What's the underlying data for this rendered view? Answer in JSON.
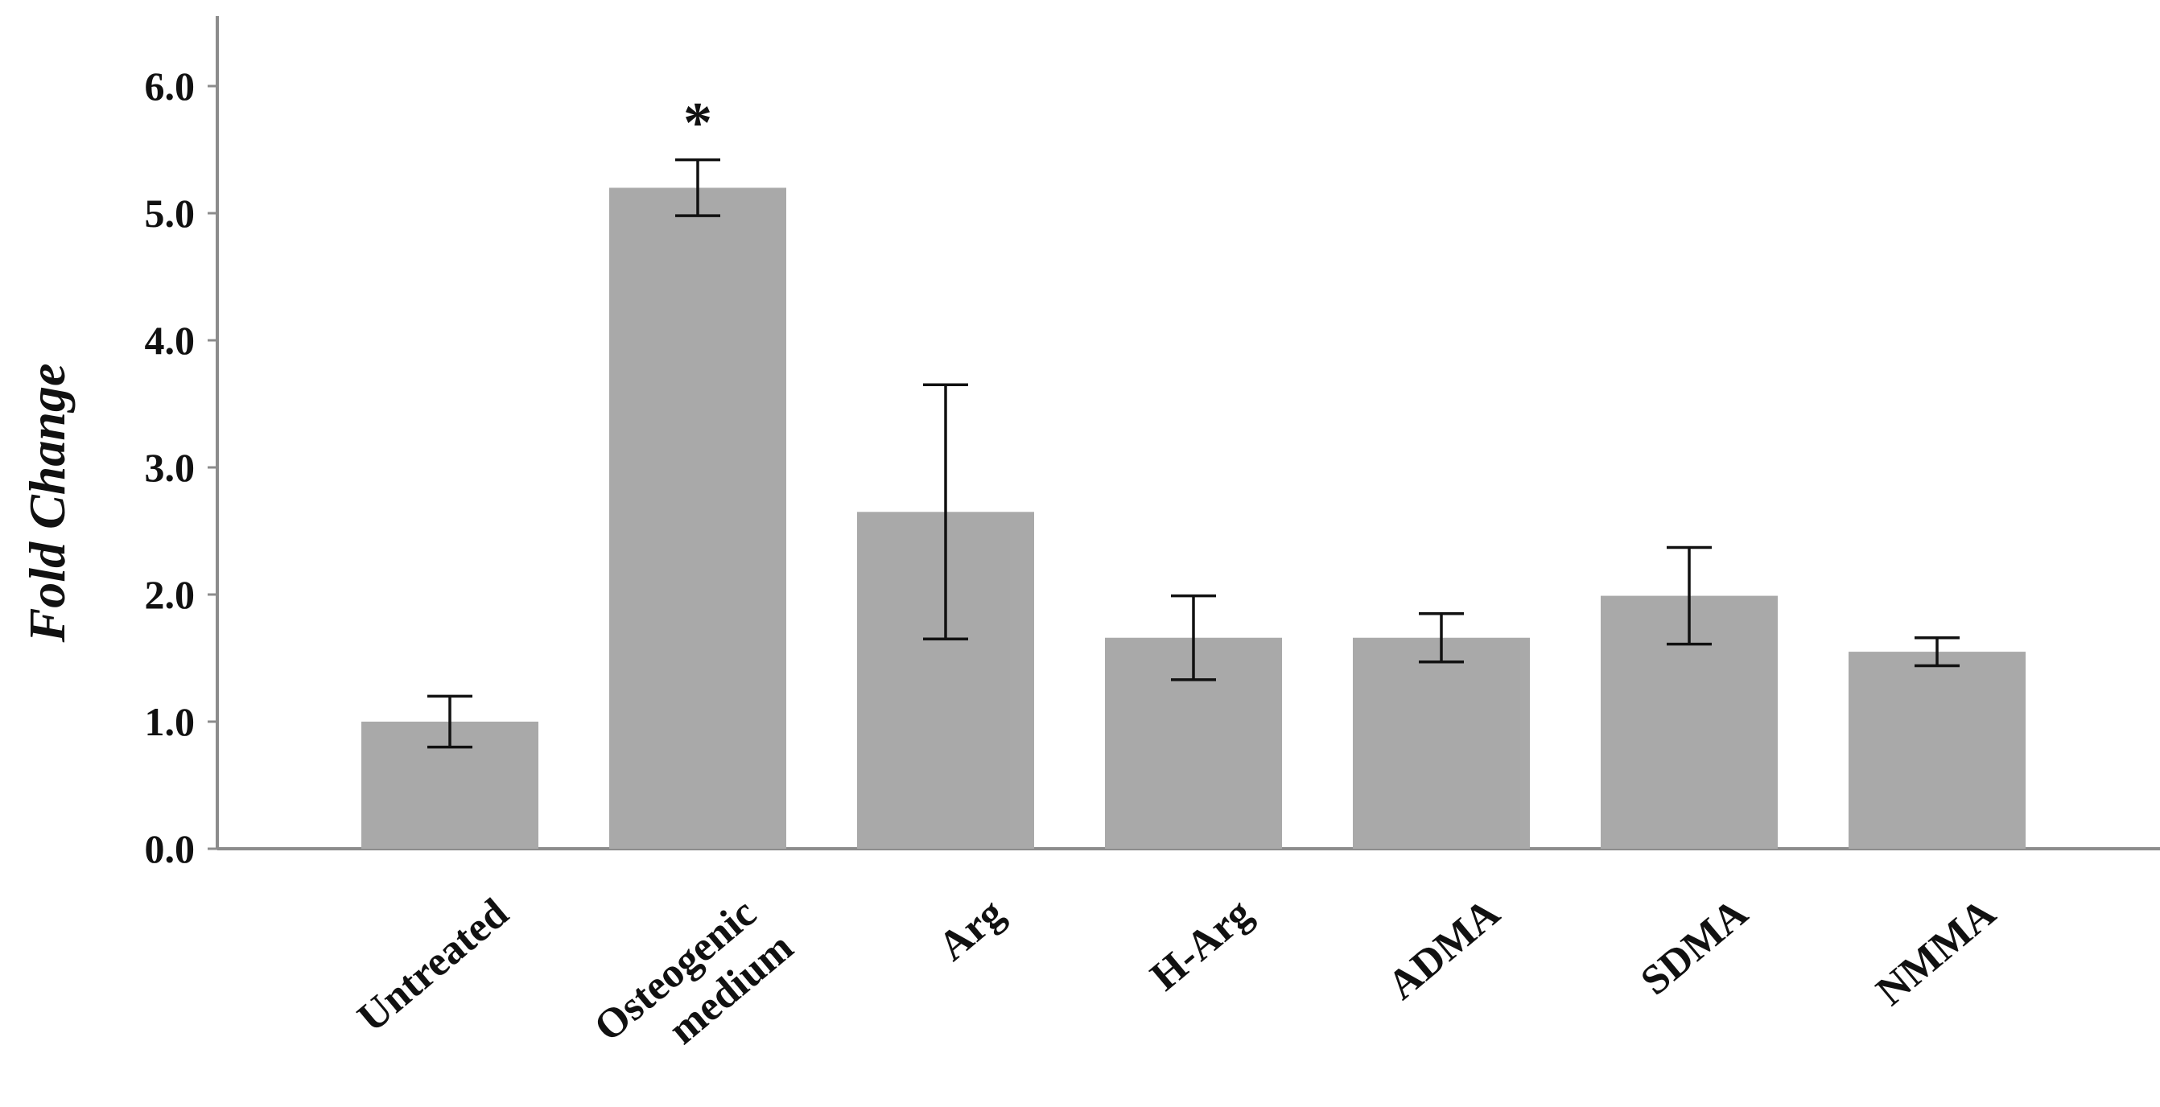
{
  "chart_data": {
    "type": "bar",
    "title": "",
    "xlabel": "",
    "ylabel": "Fold Change",
    "ylim": [
      0,
      6.5
    ],
    "yticks": [
      0,
      1,
      2,
      3,
      4,
      5,
      6
    ],
    "ytick_labels": [
      "0.0",
      "1.0",
      "2.0",
      "3.0",
      "4.0",
      "5.0",
      "6.0"
    ],
    "categories": [
      [
        "Untreated"
      ],
      [
        "Osteogenic",
        "medium"
      ],
      [
        "Arg"
      ],
      [
        "H-Arg"
      ],
      [
        "ADMA"
      ],
      [
        "SDMA"
      ],
      [
        "NMMA"
      ]
    ],
    "values": [
      1.0,
      5.2,
      2.65,
      1.66,
      1.66,
      1.99,
      1.55
    ],
    "errors": [
      0.2,
      0.22,
      1.0,
      0.33,
      0.19,
      0.38,
      0.11
    ],
    "annotations": [
      {
        "category_index": 1,
        "text": "*"
      }
    ],
    "bar_color": "#a9a9a9",
    "axis_color": "#8c8c8c",
    "error_color": "#111111",
    "grid": false,
    "legend": "none"
  }
}
